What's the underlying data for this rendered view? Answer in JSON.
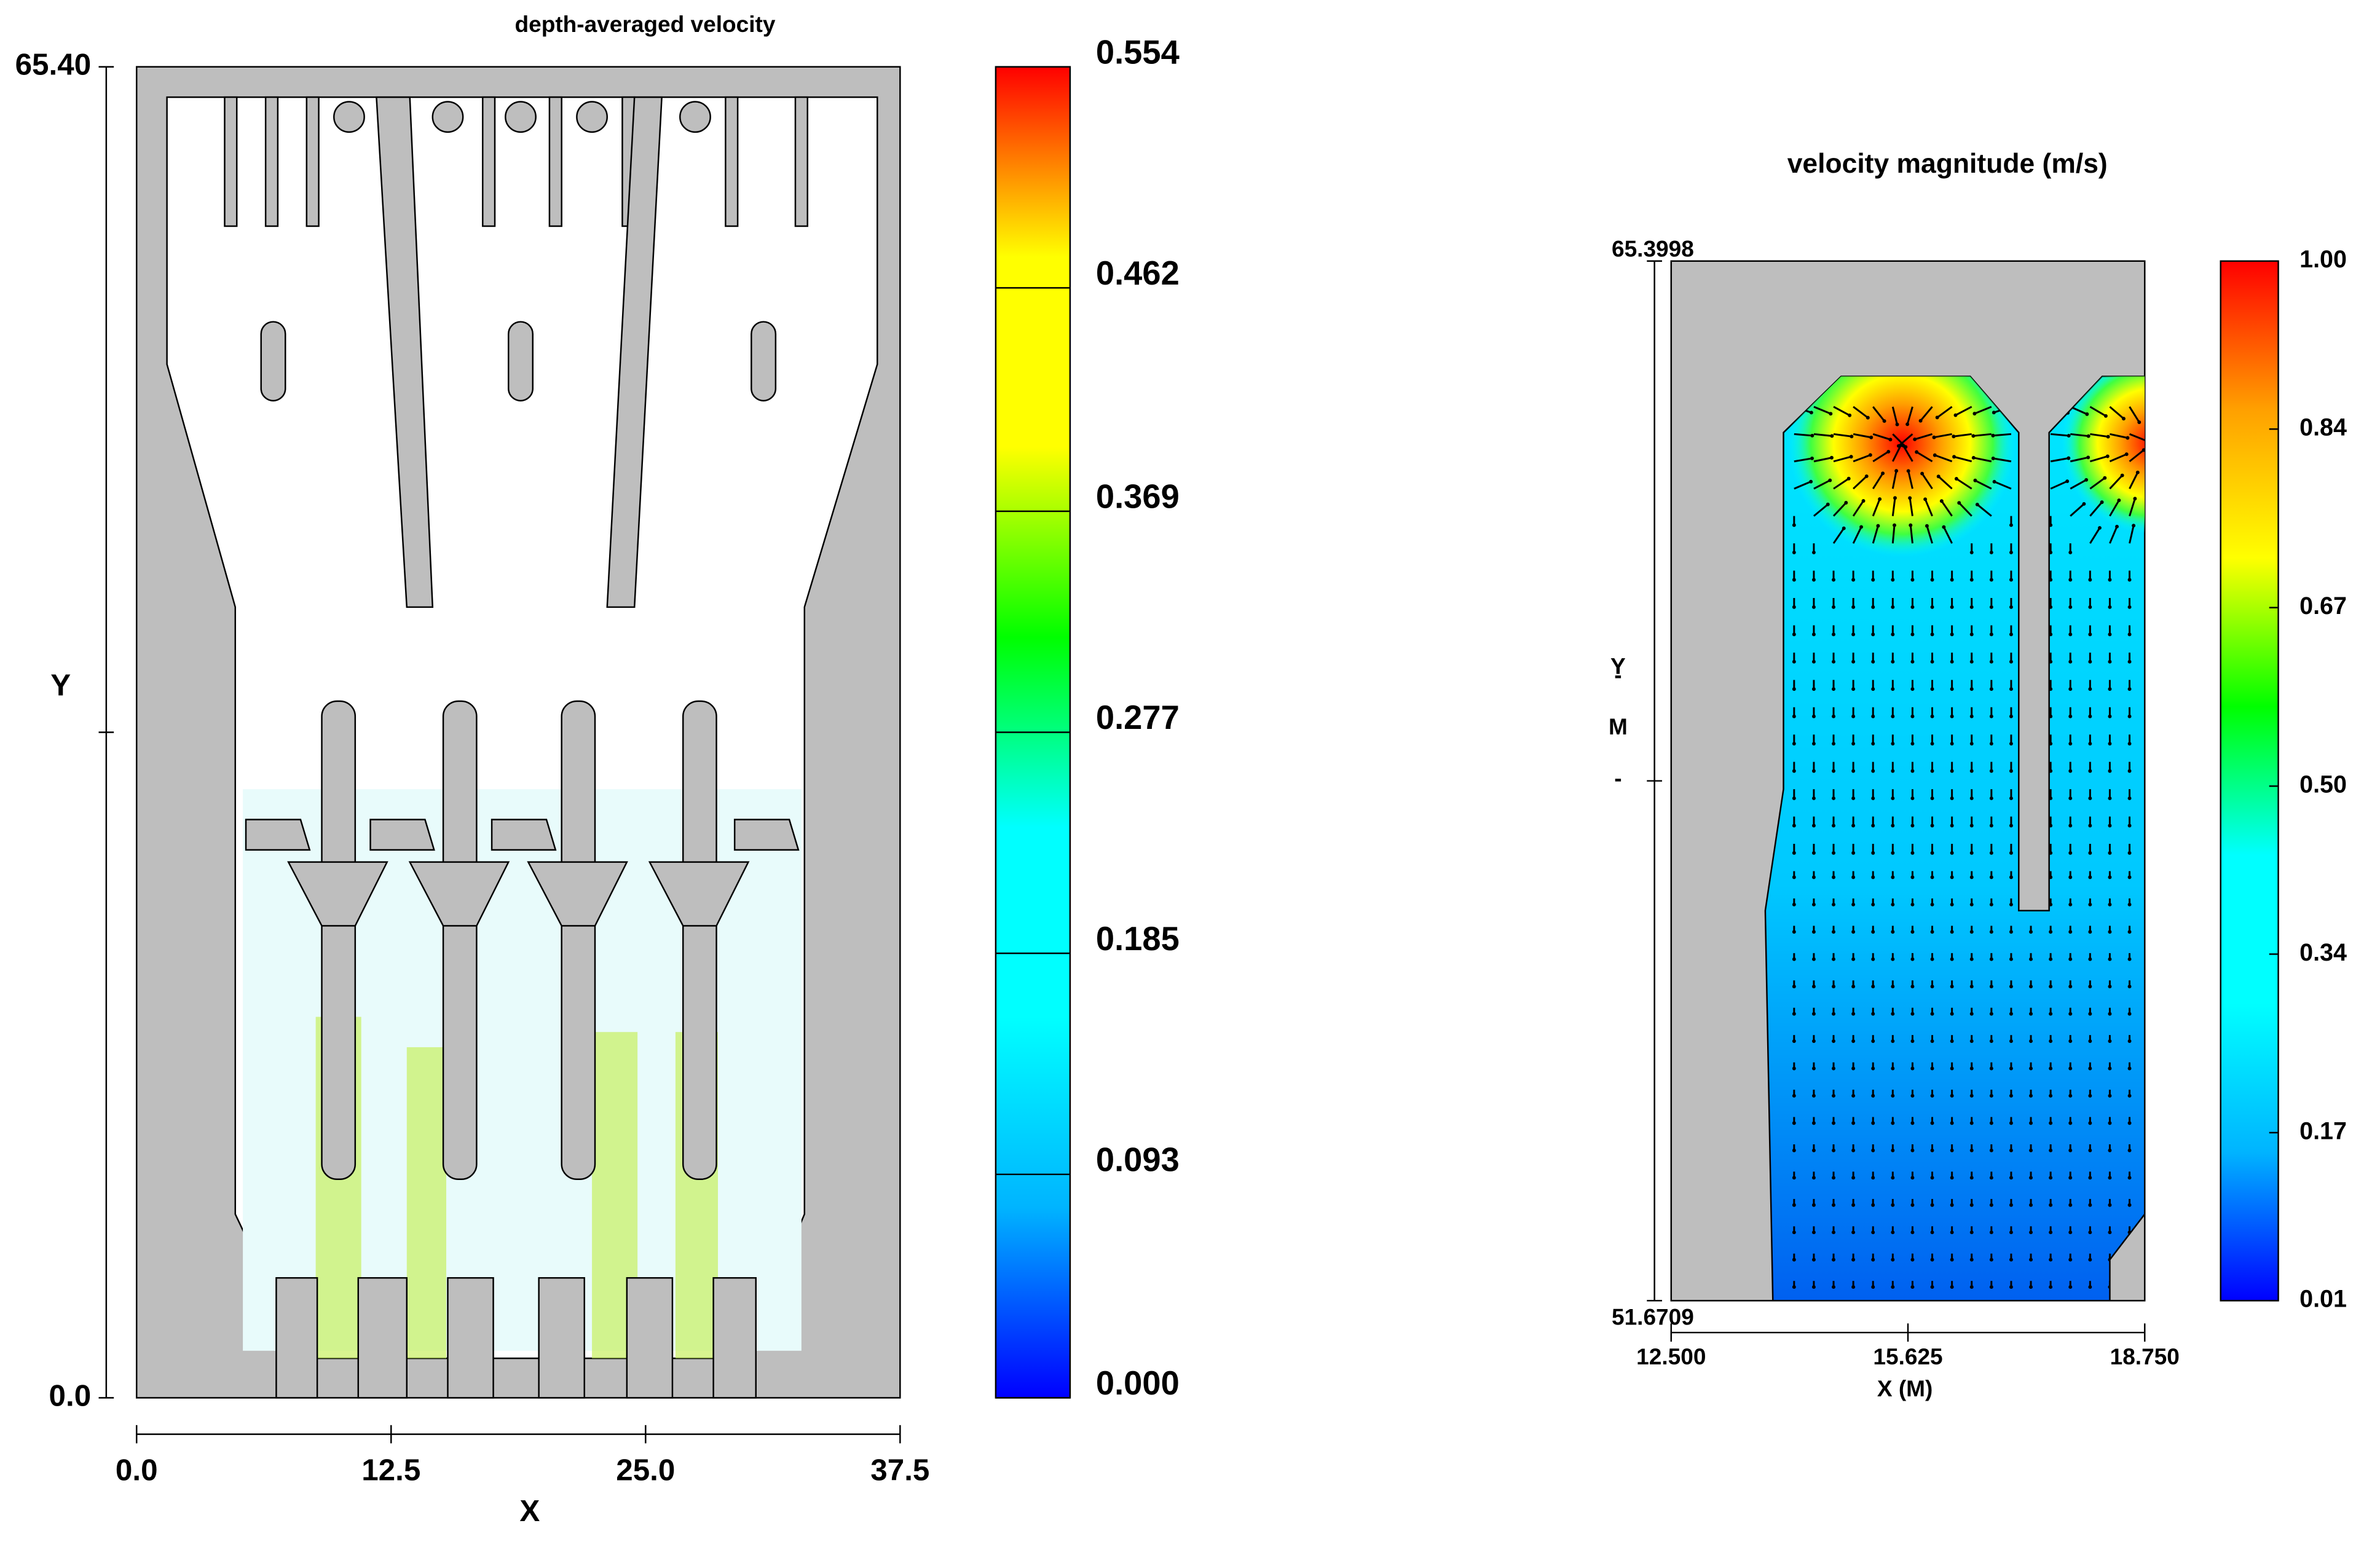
{
  "chart_data": [
    {
      "type": "contour",
      "title": "depth-averaged velocity",
      "x_label": "X",
      "y_label": "Y",
      "xlim": [
        0,
        37.5
      ],
      "xticks": [
        {
          "value": 0,
          "label": "0.0"
        },
        {
          "value": 12.5,
          "label": "12.5"
        },
        {
          "value": 25,
          "label": "25.0"
        },
        37.5
      ],
      "ylim": [
        0,
        65.4
      ],
      "yticks": [
        {
          "value": 0,
          "label": "0.0"
        },
        {
          "value": 65.4,
          "label": "65.40"
        }
      ],
      "colorbar_lim": [
        0,
        0.554
      ],
      "colorbar_ticks": [
        {
          "value": 0,
          "label": "0.000"
        },
        0.093,
        0.185,
        0.277,
        0.369,
        0.462,
        0.554
      ],
      "colormap": [
        "#0000ff",
        "#00b4ff",
        "#00ffff",
        "#00ffff",
        "#00ff00",
        "#ffff00",
        "#ffff00",
        "#ff0000"
      ]
    },
    {
      "type": "vector-contour",
      "title": "velocity magnitude (m/s)",
      "x_label": "X  (M)",
      "y_label": [
        "Y",
        "-",
        "M",
        "-"
      ],
      "xlim": [
        12.5,
        18.75
      ],
      "xticks": [
        {
          "value": 12.5,
          "label": "12.500"
        },
        15.625,
        {
          "value": 18.75,
          "label": "18.750"
        }
      ],
      "ylim": [
        51.6709,
        65.3998
      ],
      "yticks": [
        51.6709,
        65.3998
      ],
      "colorbar_lim": [
        0.01,
        1.0
      ],
      "colorbar_ticks": [
        0.01,
        0.17,
        0.34,
        {
          "value": 0.5,
          "label": "0.50"
        },
        0.67,
        0.84,
        {
          "value": 1.0,
          "label": "1.00"
        }
      ],
      "colormap": [
        "#0000ff",
        "#00b4ff",
        "#00ffff",
        "#00ffff",
        "#00ff00",
        "#ffff00",
        "#ffa000",
        "#ff0000"
      ]
    }
  ]
}
